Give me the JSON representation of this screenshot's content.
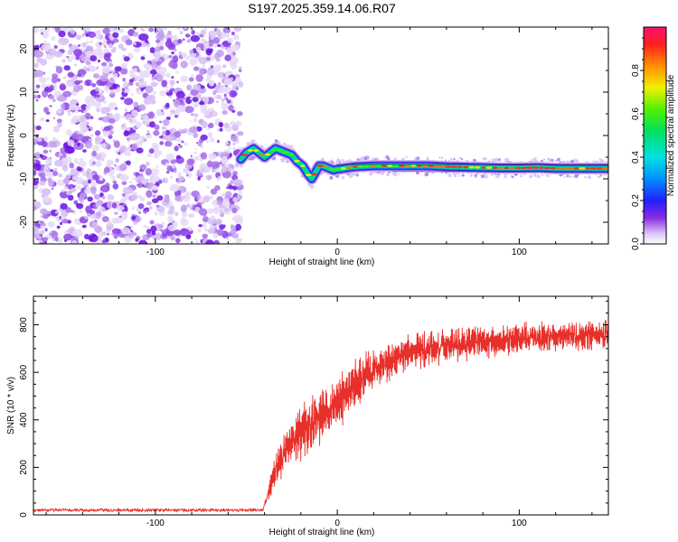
{
  "title": "S197.2025.359.14.06.R07",
  "colors": {
    "snr_line": "#e8302a",
    "speckle": "#7a28e8"
  },
  "chart_data": [
    {
      "type": "heatmap",
      "name": "spectrogram",
      "xlabel": "Height of straight line (km)",
      "ylabel": "Frequency (Hz)",
      "xlim": [
        -167,
        149
      ],
      "ylim": [
        -25,
        25
      ],
      "xticks": [
        -100,
        0,
        100
      ],
      "yticks": [
        -20,
        -10,
        0,
        10,
        20
      ],
      "noise_region_x": [
        -167,
        -53
      ],
      "ridge": {
        "x": [
          -53,
          -50,
          -46,
          -43,
          -40,
          -37,
          -34,
          -31,
          -28,
          -25,
          -22,
          -19,
          -16,
          -14,
          -12,
          -10,
          -8,
          -5,
          -2,
          0,
          5,
          10,
          20,
          30,
          40,
          50,
          60,
          70,
          80,
          90,
          100,
          110,
          120,
          130,
          140,
          149
        ],
        "y": [
          -5.5,
          -4,
          -3,
          -4,
          -5,
          -4,
          -3,
          -3.5,
          -4,
          -4.5,
          -6,
          -7,
          -9,
          -10,
          -8.5,
          -7,
          -7,
          -7.5,
          -8,
          -7.8,
          -7.5,
          -7.2,
          -7,
          -7,
          -7,
          -7,
          -7.2,
          -7.3,
          -7.4,
          -7.5,
          -7.5,
          -7.4,
          -7.6,
          -7.6,
          -7.6,
          -7.6
        ]
      },
      "colorbar": {
        "label": "Normalized spectral amplitude",
        "range": [
          0,
          1
        ],
        "ticks": [
          "0.0",
          "0.2",
          "0.4",
          "0.6",
          "0.8"
        ]
      }
    },
    {
      "type": "line",
      "name": "snr",
      "xlabel": "Height of straight line (km)",
      "ylabel": "SNR (10 * v/v)",
      "xlim": [
        -167,
        149
      ],
      "ylim": [
        0,
        920
      ],
      "xticks": [
        -100,
        0,
        100
      ],
      "yticks": [
        0,
        200,
        400,
        600,
        800
      ],
      "trend": {
        "x": [
          -167,
          -41,
          -38,
          -35,
          -30,
          -25,
          -20,
          -15,
          -10,
          -5,
          0,
          10,
          20,
          30,
          40,
          50,
          60,
          80,
          100,
          120,
          149
        ],
        "y": [
          20,
          20,
          90,
          170,
          250,
          310,
          350,
          380,
          400,
          430,
          470,
          550,
          610,
          650,
          680,
          700,
          715,
          730,
          740,
          750,
          760
        ]
      },
      "fluctuation_amplitude": {
        "x": [
          -167,
          -41,
          -35,
          -20,
          0,
          30,
          60,
          149
        ],
        "y": [
          12,
          12,
          80,
          160,
          140,
          110,
          90,
          80
        ]
      }
    }
  ]
}
